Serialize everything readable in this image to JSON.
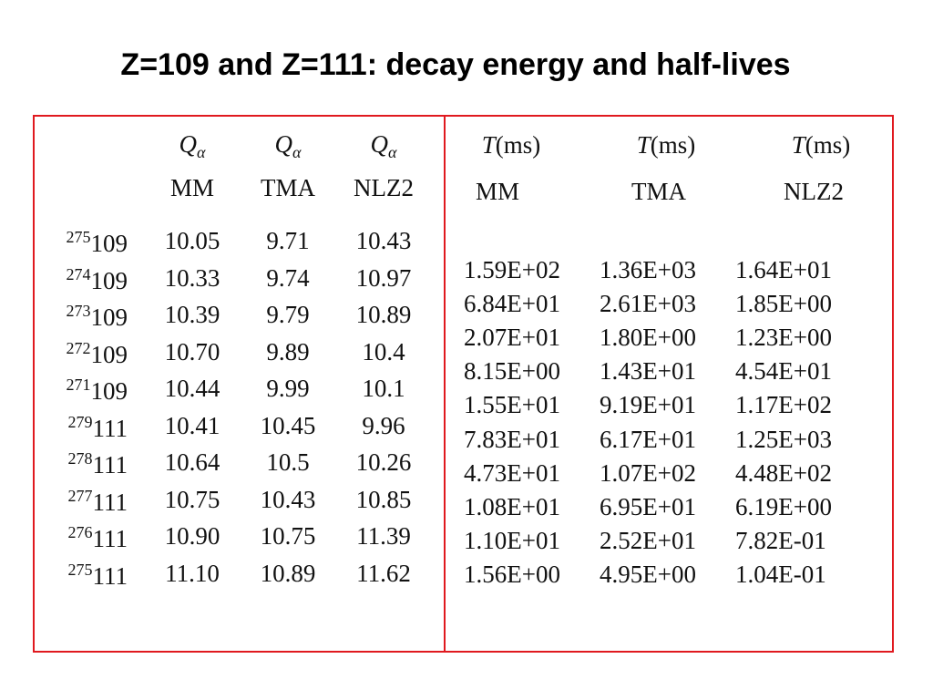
{
  "title": "Z=109 and Z=111: decay energy and half-lives",
  "left_table": {
    "headers": [
      {
        "symbol": "Q",
        "subscript": "α",
        "model": "MM"
      },
      {
        "symbol": "Q",
        "subscript": "α",
        "model": "TMA"
      },
      {
        "symbol": "Q",
        "subscript": "α",
        "model": "NLZ2"
      }
    ],
    "rows": [
      {
        "mass": "275",
        "z": "109",
        "values": [
          "10.05",
          "9.71",
          "10.43"
        ]
      },
      {
        "mass": "274",
        "z": "109",
        "values": [
          "10.33",
          "9.74",
          "10.97"
        ]
      },
      {
        "mass": "273",
        "z": "109",
        "values": [
          "10.39",
          "9.79",
          "10.89"
        ]
      },
      {
        "mass": "272",
        "z": "109",
        "values": [
          "10.70",
          "9.89",
          "10.4"
        ]
      },
      {
        "mass": "271",
        "z": "109",
        "values": [
          "10.44",
          "9.99",
          "10.1"
        ]
      },
      {
        "mass": "279",
        "z": "111",
        "values": [
          "10.41",
          "10.45",
          "9.96"
        ]
      },
      {
        "mass": "278",
        "z": "111",
        "values": [
          "10.64",
          "10.5",
          "10.26"
        ]
      },
      {
        "mass": "277",
        "z": "111",
        "values": [
          "10.75",
          "10.43",
          "10.85"
        ]
      },
      {
        "mass": "276",
        "z": "111",
        "values": [
          "10.90",
          "10.75",
          "11.39"
        ]
      },
      {
        "mass": "275",
        "z": "111",
        "values": [
          "11.10",
          "10.89",
          "11.62"
        ]
      }
    ]
  },
  "right_table": {
    "headers": [
      {
        "symbol": "T",
        "unit": "(ms)",
        "model": "MM"
      },
      {
        "symbol": "T",
        "unit": "(ms)",
        "model": "TMA"
      },
      {
        "symbol": "T",
        "unit": "(ms)",
        "model": "NLZ2"
      }
    ],
    "rows": [
      [
        "1.59E+02",
        "1.36E+03",
        "1.64E+01"
      ],
      [
        "6.84E+01",
        "2.61E+03",
        "1.85E+00"
      ],
      [
        "2.07E+01",
        "1.80E+00",
        "1.23E+00"
      ],
      [
        "8.15E+00",
        "1.43E+01",
        "4.54E+01"
      ],
      [
        "1.55E+01",
        "9.19E+01",
        "1.17E+02"
      ],
      [
        "7.83E+01",
        "6.17E+01",
        "1.25E+03"
      ],
      [
        "4.73E+01",
        "1.07E+02",
        "4.48E+02"
      ],
      [
        "1.08E+01",
        "6.95E+01",
        "6.19E+00"
      ],
      [
        "1.10E+01",
        "2.52E+01",
        "7.82E-01"
      ],
      [
        "1.56E+00",
        "4.95E+00",
        "1.04E-01"
      ]
    ]
  }
}
